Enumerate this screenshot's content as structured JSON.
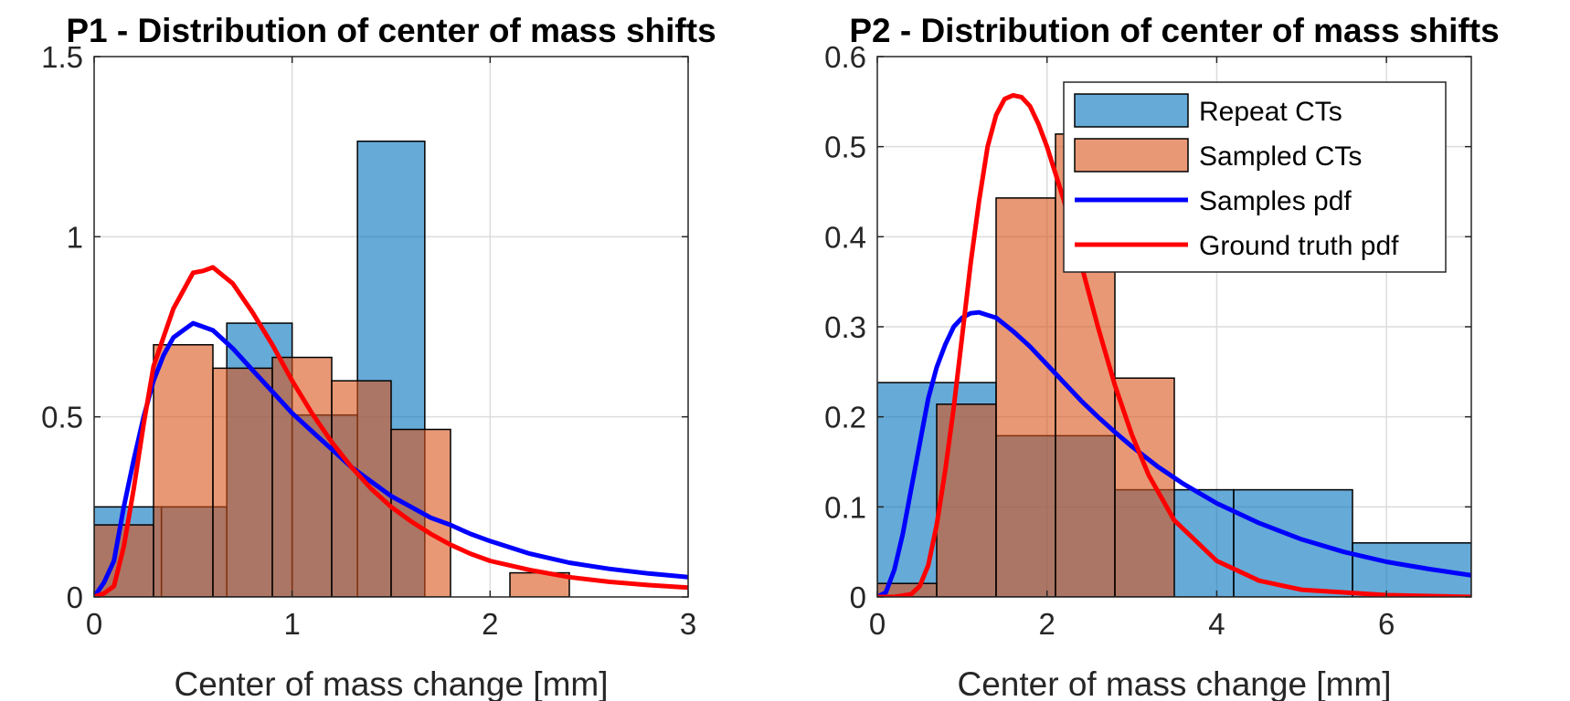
{
  "colors": {
    "repeat_face": "#0072BD",
    "sampled_face": "#D95319",
    "samples_pdf": "#0000FF",
    "ground_truth_pdf": "#FF0000",
    "grid": "#DCDCDC",
    "axis": "#262626"
  },
  "chart_data": [
    {
      "type": "histogram",
      "title": "P1 - Distribution of center of mass shifts",
      "xlabel": "Center of mass change [mm]",
      "ylabel": "",
      "xlim": [
        0,
        3
      ],
      "ylim": [
        0,
        1.5
      ],
      "xticks": [
        0,
        1,
        2,
        3
      ],
      "xtick_labels": [
        "0",
        "1",
        "2",
        "3"
      ],
      "yticks": [
        0,
        0.5,
        1,
        1.5
      ],
      "ytick_labels": [
        "0",
        "0.5",
        "1",
        "1.5"
      ],
      "grid": true,
      "legend": null,
      "histograms": [
        {
          "name": "Repeat CTs",
          "color_key": "repeat_face",
          "bins": [
            {
              "x0": 0.0,
              "x1": 0.34,
              "value": 0.25
            },
            {
              "x0": 0.34,
              "x1": 0.67,
              "value": 0.25
            },
            {
              "x0": 0.67,
              "x1": 1.0,
              "value": 0.76
            },
            {
              "x0": 1.0,
              "x1": 1.33,
              "value": 0.505
            },
            {
              "x0": 1.33,
              "x1": 1.67,
              "value": 1.265
            }
          ]
        },
        {
          "name": "Sampled CTs",
          "color_key": "sampled_face",
          "bins": [
            {
              "x0": 0.0,
              "x1": 0.3,
              "value": 0.2
            },
            {
              "x0": 0.3,
              "x1": 0.6,
              "value": 0.7
            },
            {
              "x0": 0.6,
              "x1": 0.9,
              "value": 0.635
            },
            {
              "x0": 0.9,
              "x1": 1.2,
              "value": 0.665
            },
            {
              "x0": 1.2,
              "x1": 1.5,
              "value": 0.6
            },
            {
              "x0": 1.5,
              "x1": 1.8,
              "value": 0.465
            },
            {
              "x0": 1.8,
              "x1": 2.1,
              "value": 0.0
            },
            {
              "x0": 2.1,
              "x1": 2.4,
              "value": 0.067
            }
          ]
        }
      ],
      "series": [
        {
          "name": "Samples pdf",
          "color_key": "samples_pdf",
          "x": [
            0,
            0.05,
            0.1,
            0.15,
            0.2,
            0.25,
            0.3,
            0.35,
            0.4,
            0.45,
            0.5,
            0.55,
            0.6,
            0.7,
            0.8,
            0.9,
            1.0,
            1.1,
            1.2,
            1.3,
            1.4,
            1.5,
            1.6,
            1.7,
            1.8,
            1.9,
            2.0,
            2.2,
            2.4,
            2.6,
            2.8,
            3.0
          ],
          "y": [
            0,
            0.04,
            0.1,
            0.25,
            0.38,
            0.5,
            0.6,
            0.67,
            0.72,
            0.74,
            0.76,
            0.75,
            0.74,
            0.69,
            0.63,
            0.57,
            0.51,
            0.46,
            0.41,
            0.36,
            0.32,
            0.28,
            0.25,
            0.22,
            0.2,
            0.175,
            0.155,
            0.12,
            0.095,
            0.078,
            0.065,
            0.055
          ]
        },
        {
          "name": "Ground truth pdf",
          "color_key": "ground_truth_pdf",
          "x": [
            0,
            0.05,
            0.1,
            0.15,
            0.2,
            0.25,
            0.3,
            0.35,
            0.4,
            0.45,
            0.5,
            0.55,
            0.6,
            0.7,
            0.8,
            0.9,
            1.0,
            1.1,
            1.2,
            1.3,
            1.4,
            1.5,
            1.6,
            1.7,
            1.8,
            1.9,
            2.0,
            2.2,
            2.4,
            2.6,
            2.8,
            3.0
          ],
          "y": [
            0,
            0.01,
            0.03,
            0.14,
            0.3,
            0.48,
            0.64,
            0.72,
            0.8,
            0.85,
            0.9,
            0.905,
            0.915,
            0.87,
            0.79,
            0.7,
            0.6,
            0.51,
            0.43,
            0.36,
            0.3,
            0.25,
            0.21,
            0.175,
            0.145,
            0.12,
            0.1,
            0.075,
            0.055,
            0.042,
            0.033,
            0.026
          ]
        }
      ]
    },
    {
      "type": "histogram",
      "title": "P2 - Distribution of center of mass shifts",
      "xlabel": "Center of mass change [mm]",
      "ylabel": "",
      "xlim": [
        0,
        7
      ],
      "ylim": [
        0,
        0.6
      ],
      "xticks": [
        0,
        2,
        4,
        6
      ],
      "xtick_labels": [
        "0",
        "2",
        "4",
        "6"
      ],
      "yticks": [
        0,
        0.1,
        0.2,
        0.3,
        0.4,
        0.5,
        0.6
      ],
      "ytick_labels": [
        "0",
        "0.1",
        "0.2",
        "0.3",
        "0.4",
        "0.5",
        "0.6"
      ],
      "grid": true,
      "legend": "top-right",
      "histograms": [
        {
          "name": "Repeat CTs",
          "color_key": "repeat_face",
          "bins": [
            {
              "x0": 0.0,
              "x1": 1.4,
              "value": 0.238
            },
            {
              "x0": 1.4,
              "x1": 2.8,
              "value": 0.179
            },
            {
              "x0": 2.8,
              "x1": 4.2,
              "value": 0.119
            },
            {
              "x0": 4.2,
              "x1": 5.6,
              "value": 0.119
            },
            {
              "x0": 5.6,
              "x1": 7.0,
              "value": 0.06
            }
          ]
        },
        {
          "name": "Sampled CTs",
          "color_key": "sampled_face",
          "bins": [
            {
              "x0": 0.0,
              "x1": 0.7,
              "value": 0.015
            },
            {
              "x0": 0.7,
              "x1": 1.4,
              "value": 0.214
            },
            {
              "x0": 1.4,
              "x1": 2.1,
              "value": 0.443
            },
            {
              "x0": 2.1,
              "x1": 2.8,
              "value": 0.514
            },
            {
              "x0": 2.8,
              "x1": 3.5,
              "value": 0.243
            }
          ]
        }
      ],
      "series": [
        {
          "name": "Samples pdf",
          "color_key": "samples_pdf",
          "x": [
            0,
            0.1,
            0.2,
            0.3,
            0.4,
            0.5,
            0.6,
            0.7,
            0.8,
            0.9,
            1.0,
            1.1,
            1.2,
            1.3,
            1.4,
            1.6,
            1.8,
            2.0,
            2.2,
            2.4,
            2.6,
            2.8,
            3.0,
            3.3,
            3.6,
            4.0,
            4.5,
            5.0,
            5.5,
            6.0,
            6.5,
            7.0
          ],
          "y": [
            0,
            0.005,
            0.03,
            0.07,
            0.12,
            0.17,
            0.22,
            0.255,
            0.28,
            0.3,
            0.31,
            0.315,
            0.316,
            0.313,
            0.31,
            0.295,
            0.278,
            0.258,
            0.238,
            0.218,
            0.2,
            0.183,
            0.167,
            0.145,
            0.126,
            0.104,
            0.082,
            0.064,
            0.05,
            0.039,
            0.031,
            0.024
          ]
        },
        {
          "name": "Ground truth pdf",
          "color_key": "ground_truth_pdf",
          "x": [
            0,
            0.2,
            0.4,
            0.5,
            0.6,
            0.7,
            0.8,
            0.9,
            1.0,
            1.1,
            1.2,
            1.3,
            1.4,
            1.5,
            1.6,
            1.7,
            1.8,
            1.9,
            2.0,
            2.1,
            2.2,
            2.4,
            2.6,
            2.8,
            3.0,
            3.2,
            3.5,
            4.0,
            4.5,
            5.0,
            6.0,
            7.0
          ],
          "y": [
            0,
            0,
            0.003,
            0.012,
            0.035,
            0.08,
            0.14,
            0.21,
            0.29,
            0.37,
            0.44,
            0.5,
            0.535,
            0.553,
            0.557,
            0.555,
            0.545,
            0.525,
            0.5,
            0.47,
            0.44,
            0.37,
            0.3,
            0.235,
            0.18,
            0.135,
            0.085,
            0.04,
            0.018,
            0.008,
            0.002,
            0.0
          ]
        }
      ]
    }
  ],
  "legend_items": [
    {
      "label": "Repeat CTs",
      "kind": "patch",
      "color_key": "repeat_face"
    },
    {
      "label": "Sampled CTs",
      "kind": "patch",
      "color_key": "sampled_face"
    },
    {
      "label": "Samples pdf",
      "kind": "line",
      "color_key": "samples_pdf"
    },
    {
      "label": "Ground truth pdf",
      "kind": "line",
      "color_key": "ground_truth_pdf"
    }
  ]
}
